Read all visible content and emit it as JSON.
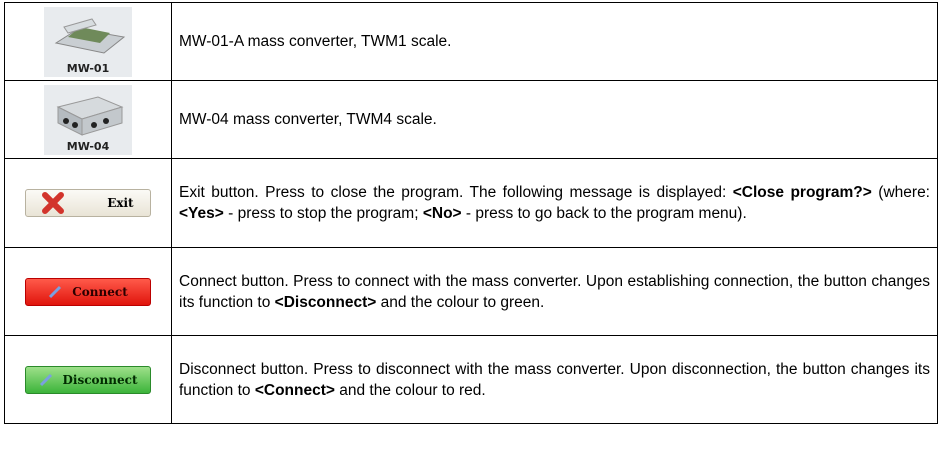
{
  "table": {
    "rows": [
      {
        "icon_label": "MW-01",
        "description": [
          {
            "text": "MW-01-A mass converter, TWM1 scale.",
            "bold": false
          }
        ]
      },
      {
        "icon_label": "MW-04",
        "description": [
          {
            "text": "MW-04 mass converter, TWM4 scale.",
            "bold": false
          }
        ]
      },
      {
        "icon_label": "Exit",
        "description": [
          {
            "text": "Exit button. Press to close the program. The following message is displayed: ",
            "bold": false
          },
          {
            "text": "<Close program?>",
            "bold": true
          },
          {
            "text": " (where: ",
            "bold": false
          },
          {
            "text": "<Yes>",
            "bold": true
          },
          {
            "text": " - press to stop the program; ",
            "bold": false
          },
          {
            "text": "<No>",
            "bold": true
          },
          {
            "text": " - press to go back to the program menu).",
            "bold": false
          }
        ]
      },
      {
        "icon_label": "Connect",
        "description": [
          {
            "text": "Connect button. Press to connect with the mass converter. Upon establishing connection, the button changes its function to ",
            "bold": false
          },
          {
            "text": "<Disconnect>",
            "bold": true
          },
          {
            "text": " and the colour to green.",
            "bold": false
          }
        ]
      },
      {
        "icon_label": "Disconnect",
        "description": [
          {
            "text": "Disconnect button. Press to disconnect with the mass converter. Upon disconnection, the button changes its function to ",
            "bold": false
          },
          {
            "text": "<Connect>",
            "bold": true
          },
          {
            "text": " and the colour to red.",
            "bold": false
          }
        ]
      }
    ]
  }
}
